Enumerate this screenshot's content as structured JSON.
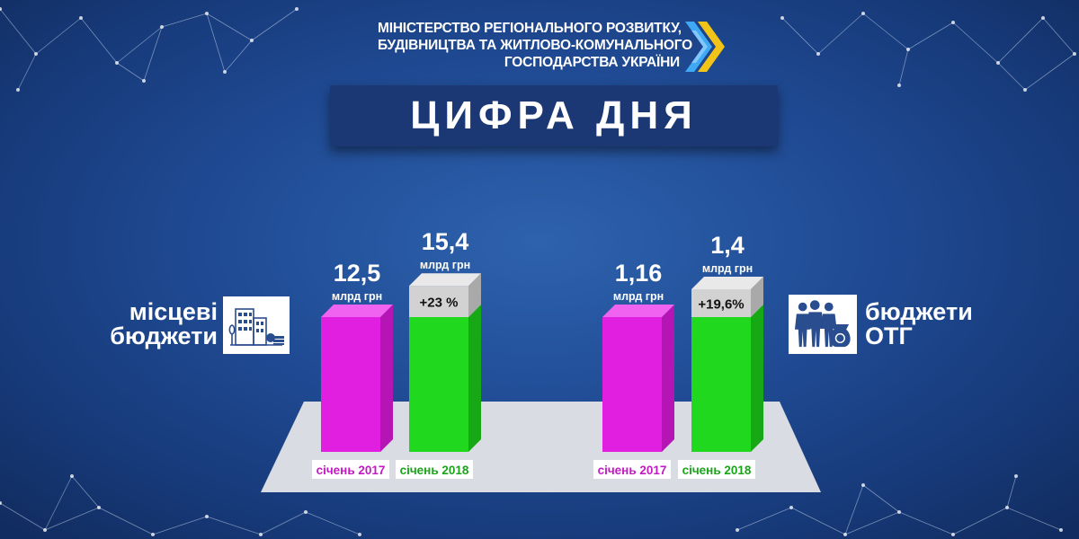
{
  "ministry": {
    "lines": [
      "МІНІСТЕРСТВО РЕГІОНАЛЬНОГО РОЗВИТКУ,",
      "БУДІВНИЦТВА ТА ЖИТЛОВО-КОМУНАЛЬНОГО",
      "ГОСПОДАРСТВА УКРАЇНИ"
    ]
  },
  "title": "ЦИФРА ДНЯ",
  "groups": [
    {
      "label_lines": [
        "місцеві",
        "бюджети"
      ],
      "icon": "city-budget-icon"
    },
    {
      "label_lines": [
        "бюджети",
        "ОТГ"
      ],
      "icon": "community-people-money-icon"
    }
  ],
  "colors": {
    "year_2017": "#e01fe0",
    "year_2018": "#20d81e",
    "growth_cap": "#d2d2d2",
    "floor": "#d9dce2",
    "label_2017_text": "#c21ac2",
    "label_2018_text": "#1aa41a"
  },
  "chart_data": {
    "type": "bar",
    "unit": "млрд грн",
    "groups": [
      {
        "name": "місцеві бюджети",
        "bars": [
          {
            "category": "січень 2017",
            "value": 12.5,
            "value_label": "12,5",
            "unit": "млрд грн"
          },
          {
            "category": "січень 2018",
            "value": 15.4,
            "value_label": "15,4",
            "unit": "млрд грн",
            "growth": "+23 %"
          }
        ]
      },
      {
        "name": "бюджети ОТГ",
        "bars": [
          {
            "category": "січень 2017",
            "value": 1.16,
            "value_label": "1,16",
            "unit": "млрд грн"
          },
          {
            "category": "січень 2018",
            "value": 1.4,
            "value_label": "1,4",
            "unit": "млрд грн",
            "growth": "+19,6%"
          }
        ]
      }
    ]
  }
}
